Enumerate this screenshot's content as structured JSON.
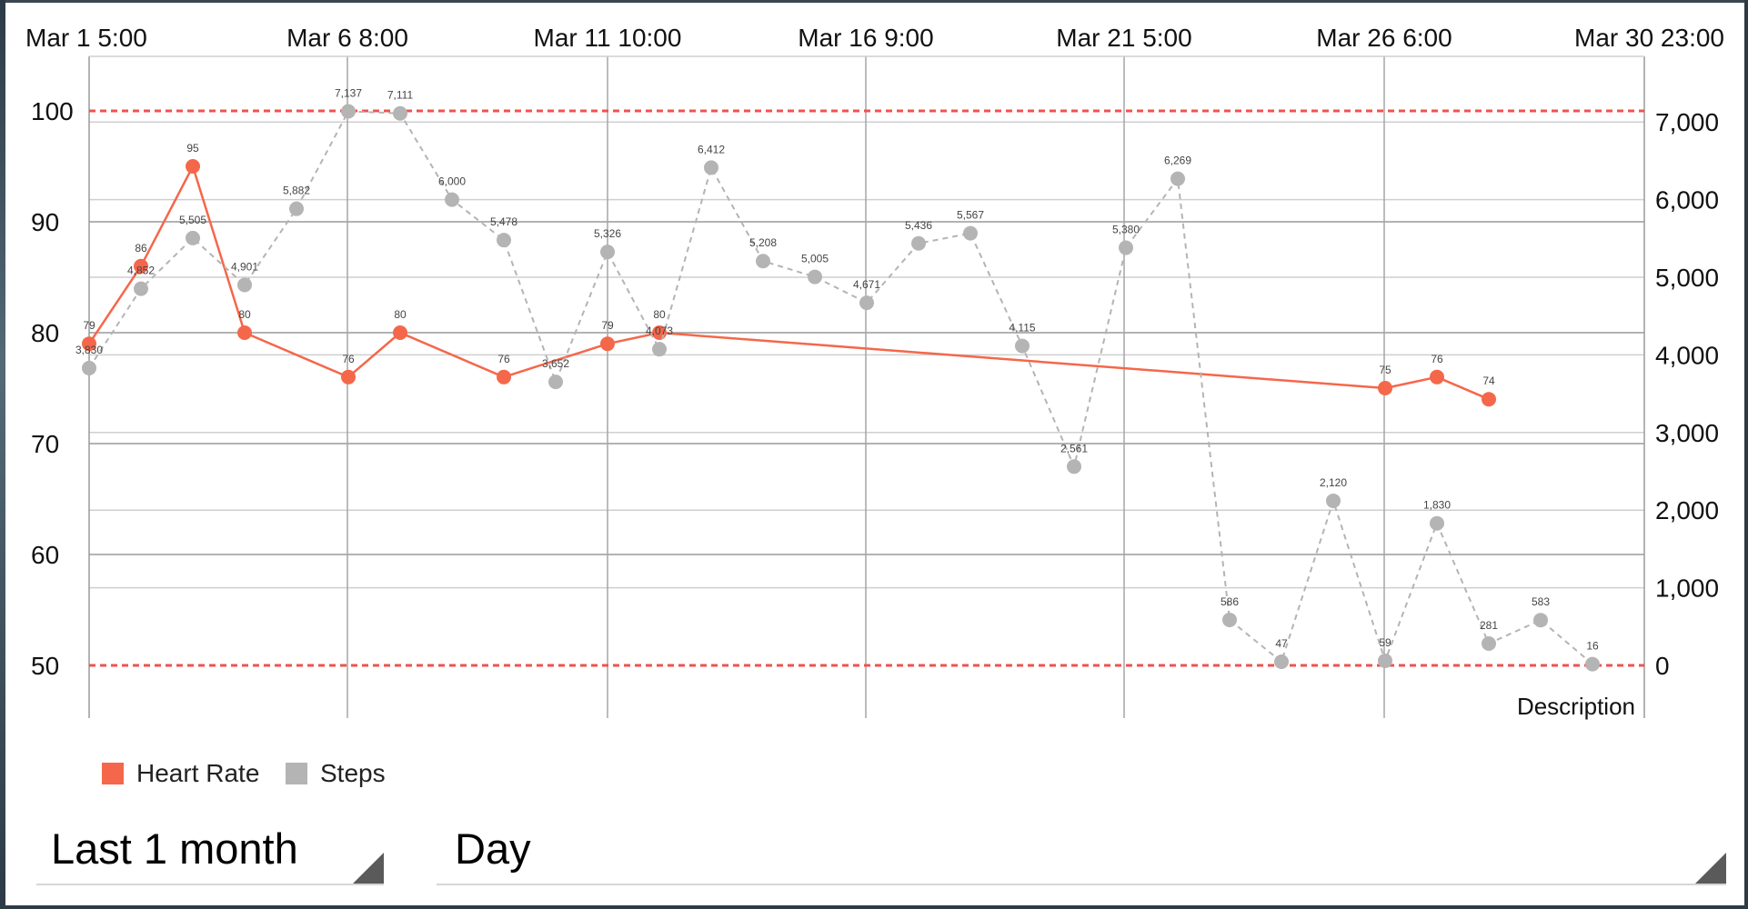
{
  "chart_data": {
    "type": "line",
    "x_tick_labels": [
      "Mar 1 5:00",
      "Mar 6 8:00",
      "Mar 11 10:00",
      "Mar 16 9:00",
      "Mar 21 5:00",
      "Mar 26 6:00",
      "Mar 30 23:00"
    ],
    "left_axis": {
      "ticks": [
        50,
        60,
        70,
        80,
        90,
        100
      ],
      "range": [
        50,
        100
      ]
    },
    "right_axis": {
      "ticks": [
        "0",
        "1,000",
        "2,000",
        "3,000",
        "4,000",
        "5,000",
        "6,000",
        "7,000"
      ],
      "range": [
        0,
        7000
      ]
    },
    "limit_lines": [
      {
        "axis": "left",
        "value": 100,
        "color": "#f0524f"
      },
      {
        "axis": "left",
        "value": 50,
        "color": "#f0524f"
      }
    ],
    "description": "Description",
    "series": [
      {
        "name": "Heart Rate",
        "axis": "left",
        "color": "#f5674a",
        "style": "solid",
        "points": [
          {
            "x": "Mar 1",
            "y": 79,
            "label": "79"
          },
          {
            "x": "Mar 2",
            "y": 86,
            "label": "86"
          },
          {
            "x": "Mar 3",
            "y": 95,
            "label": "95"
          },
          {
            "x": "Mar 4",
            "y": 80,
            "label": "80"
          },
          {
            "x": "Mar 6",
            "y": 76,
            "label": "76"
          },
          {
            "x": "Mar 7",
            "y": 80,
            "label": "80"
          },
          {
            "x": "Mar 9",
            "y": 76,
            "label": "76"
          },
          {
            "x": "Mar 11",
            "y": 79,
            "label": "79"
          },
          {
            "x": "Mar 12",
            "y": 80,
            "label": "80"
          },
          {
            "x": "Mar 26",
            "y": 75,
            "label": "75"
          },
          {
            "x": "Mar 27",
            "y": 76,
            "label": "76"
          },
          {
            "x": "Mar 28",
            "y": 74,
            "label": "74"
          }
        ]
      },
      {
        "name": "Steps",
        "axis": "right",
        "color": "#b4b4b4",
        "style": "dashed",
        "points": [
          {
            "x": "Mar 1",
            "y": 3830,
            "label": "3,830"
          },
          {
            "x": "Mar 2",
            "y": 4852,
            "label": "4,852"
          },
          {
            "x": "Mar 3",
            "y": 5505,
            "label": "5,505"
          },
          {
            "x": "Mar 4",
            "y": 4901,
            "label": "4,901"
          },
          {
            "x": "Mar 5",
            "y": 5882,
            "label": "5,882"
          },
          {
            "x": "Mar 6",
            "y": 7137,
            "label": "7,137"
          },
          {
            "x": "Mar 7",
            "y": 7111,
            "label": "7,111"
          },
          {
            "x": "Mar 8",
            "y": 6000,
            "label": "6,000"
          },
          {
            "x": "Mar 9",
            "y": 5478,
            "label": "5,478"
          },
          {
            "x": "Mar 10",
            "y": 3652,
            "label": "3,652"
          },
          {
            "x": "Mar 11",
            "y": 5326,
            "label": "5,326"
          },
          {
            "x": "Mar 12",
            "y": 4073,
            "label": "4,073"
          },
          {
            "x": "Mar 13",
            "y": 6412,
            "label": "6,412"
          },
          {
            "x": "Mar 14",
            "y": 5208,
            "label": "5,208"
          },
          {
            "x": "Mar 15",
            "y": 5005,
            "label": "5,005"
          },
          {
            "x": "Mar 16",
            "y": 4671,
            "label": "4,671"
          },
          {
            "x": "Mar 17",
            "y": 5436,
            "label": "5,436"
          },
          {
            "x": "Mar 18",
            "y": 5567,
            "label": "5,567"
          },
          {
            "x": "Mar 19",
            "y": 4115,
            "label": "4,115"
          },
          {
            "x": "Mar 20",
            "y": 2561,
            "label": "2,561"
          },
          {
            "x": "Mar 21",
            "y": 5380,
            "label": "5,380"
          },
          {
            "x": "Mar 22",
            "y": 6269,
            "label": "6,269"
          },
          {
            "x": "Mar 23",
            "y": 586,
            "label": "586"
          },
          {
            "x": "Mar 24",
            "y": 47,
            "label": "47"
          },
          {
            "x": "Mar 25",
            "y": 2120,
            "label": "2,120"
          },
          {
            "x": "Mar 26",
            "y": 59,
            "label": "59"
          },
          {
            "x": "Mar 27",
            "y": 1830,
            "label": "1,830"
          },
          {
            "x": "Mar 28",
            "y": 281,
            "label": "281"
          },
          {
            "x": "Mar 29",
            "y": 583,
            "label": "583"
          },
          {
            "x": "Mar 30",
            "y": 16,
            "label": "16"
          }
        ]
      }
    ],
    "legend": [
      {
        "label": "Heart Rate",
        "color": "#f5674a"
      },
      {
        "label": "Steps",
        "color": "#b4b4b4"
      }
    ]
  },
  "controls": {
    "range_spinner": "Last 1 month",
    "granularity_spinner": "Day"
  }
}
